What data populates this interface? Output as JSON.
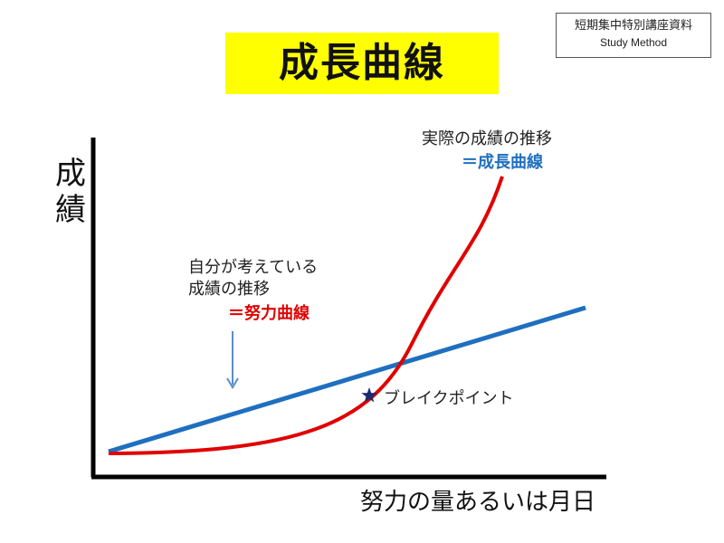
{
  "badge": {
    "line1": "短期集中特別講座資料",
    "line2": "Study Method"
  },
  "title": "成長曲線",
  "axes": {
    "y_label": "成績",
    "x_label": "努力の量あるいは月日"
  },
  "annotations": {
    "effort_curve": {
      "line1": "自分が考えている",
      "line2": "成績の推移",
      "equals": "＝努力曲線"
    },
    "growth_curve": {
      "line1": "実際の成績の推移",
      "equals": "＝成長曲線"
    },
    "break_point": "ブレイクポイント"
  },
  "colors": {
    "effort_line": "#1f6fc0",
    "growth_curve": "#e00000",
    "title_bg": "#ffff00",
    "star": "#1a2a6c",
    "arrow": "#5b8dc9"
  },
  "icons": {
    "break_point_marker": "star-icon",
    "pointer": "down-arrow-icon"
  }
}
